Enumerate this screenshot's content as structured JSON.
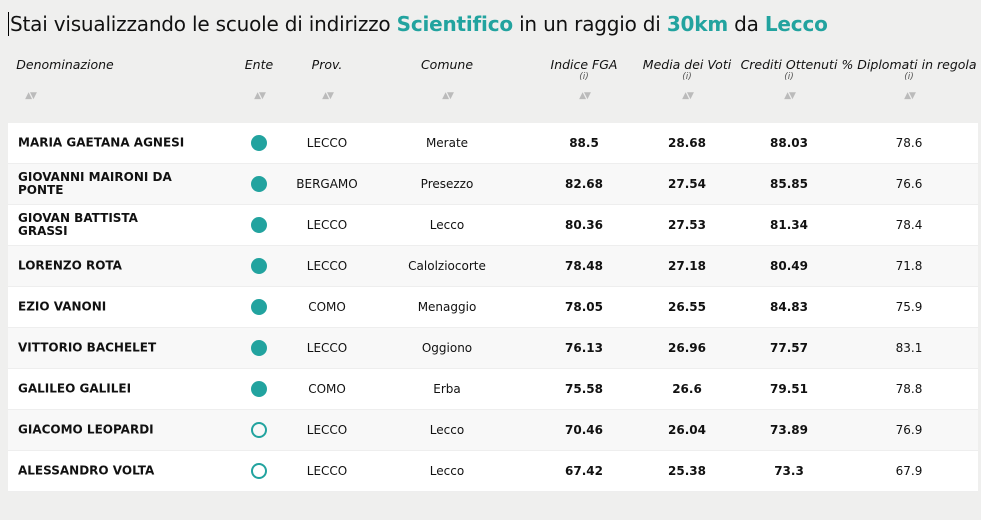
{
  "title": {
    "prefix": "Stai visualizzando le scuole di indirizzo ",
    "indirizzo": "Scientifico",
    "mid": " in un raggio di ",
    "raggio": "30km",
    "mid2": " da ",
    "citta": "Lecco"
  },
  "headers": [
    "Denominazione",
    "Ente",
    "Prov.",
    "Comune",
    "Indice FGA",
    "Media dei Voti",
    "Crediti Ottenuti",
    "% Diplomati in regola"
  ],
  "info_label": "(i)",
  "accent": "#22a39f",
  "rows": [
    {
      "name": "MARIA GAETANA AGNESI",
      "ente": "statale",
      "prov": "LECCO",
      "comune": "Merate",
      "fga": "88.5",
      "media": "28.68",
      "crediti": "88.03",
      "dipl": "78.6"
    },
    {
      "name": "GIOVANNI MAIRONI DA PONTE",
      "ente": "statale",
      "prov": "BERGAMO",
      "comune": "Presezzo",
      "fga": "82.68",
      "media": "27.54",
      "crediti": "85.85",
      "dipl": "76.6"
    },
    {
      "name": "GIOVAN BATTISTA GRASSI",
      "ente": "statale",
      "prov": "LECCO",
      "comune": "Lecco",
      "fga": "80.36",
      "media": "27.53",
      "crediti": "81.34",
      "dipl": "78.4"
    },
    {
      "name": "LORENZO ROTA",
      "ente": "statale",
      "prov": "LECCO",
      "comune": "Calolziocorte",
      "fga": "78.48",
      "media": "27.18",
      "crediti": "80.49",
      "dipl": "71.8"
    },
    {
      "name": "EZIO VANONI",
      "ente": "statale",
      "prov": "COMO",
      "comune": "Menaggio",
      "fga": "78.05",
      "media": "26.55",
      "crediti": "84.83",
      "dipl": "75.9"
    },
    {
      "name": "VITTORIO BACHELET",
      "ente": "statale",
      "prov": "LECCO",
      "comune": "Oggiono",
      "fga": "76.13",
      "media": "26.96",
      "crediti": "77.57",
      "dipl": "83.1"
    },
    {
      "name": "GALILEO GALILEI",
      "ente": "statale",
      "prov": "COMO",
      "comune": "Erba",
      "fga": "75.58",
      "media": "26.6",
      "crediti": "79.51",
      "dipl": "78.8"
    },
    {
      "name": "GIACOMO LEOPARDI",
      "ente": "paritaria",
      "prov": "LECCO",
      "comune": "Lecco",
      "fga": "70.46",
      "media": "26.04",
      "crediti": "73.89",
      "dipl": "76.9"
    },
    {
      "name": "ALESSANDRO VOLTA",
      "ente": "paritaria",
      "prov": "LECCO",
      "comune": "Lecco",
      "fga": "67.42",
      "media": "25.38",
      "crediti": "73.3",
      "dipl": "67.9"
    }
  ]
}
